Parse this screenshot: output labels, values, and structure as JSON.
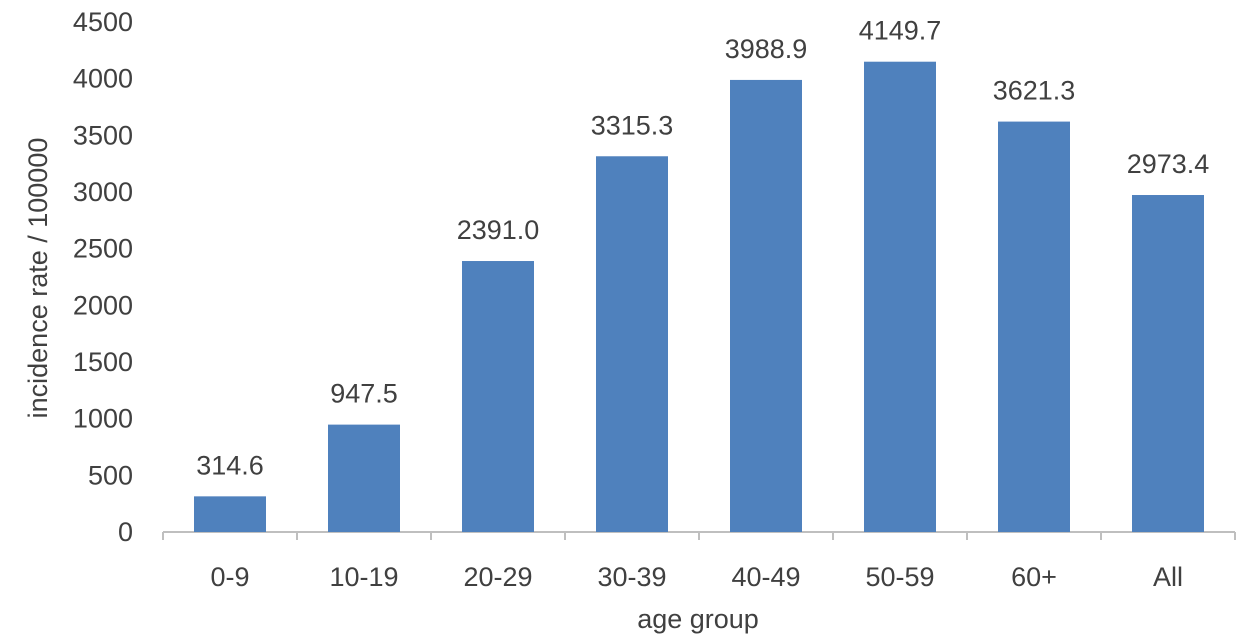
{
  "chart_data": {
    "type": "bar",
    "title": "",
    "xlabel": "age group",
    "ylabel": "incidence rate / 100000",
    "categories": [
      "0-9",
      "10-19",
      "20-29",
      "30-39",
      "40-49",
      "50-59",
      "60+",
      "All"
    ],
    "values": [
      314.6,
      947.5,
      2391.0,
      3315.3,
      3988.9,
      4149.7,
      3621.3,
      2973.4
    ],
    "value_labels": [
      "314.6",
      "947.5",
      "2391.0",
      "3315.3",
      "3988.9",
      "4149.7",
      "3621.3",
      "2973.4"
    ],
    "ylim": [
      0,
      4500
    ],
    "yticks": [
      0,
      500,
      1000,
      1500,
      2000,
      2500,
      3000,
      3500,
      4000,
      4500
    ],
    "grid": false,
    "legend": "none",
    "bar_color": "#4f81bd"
  }
}
